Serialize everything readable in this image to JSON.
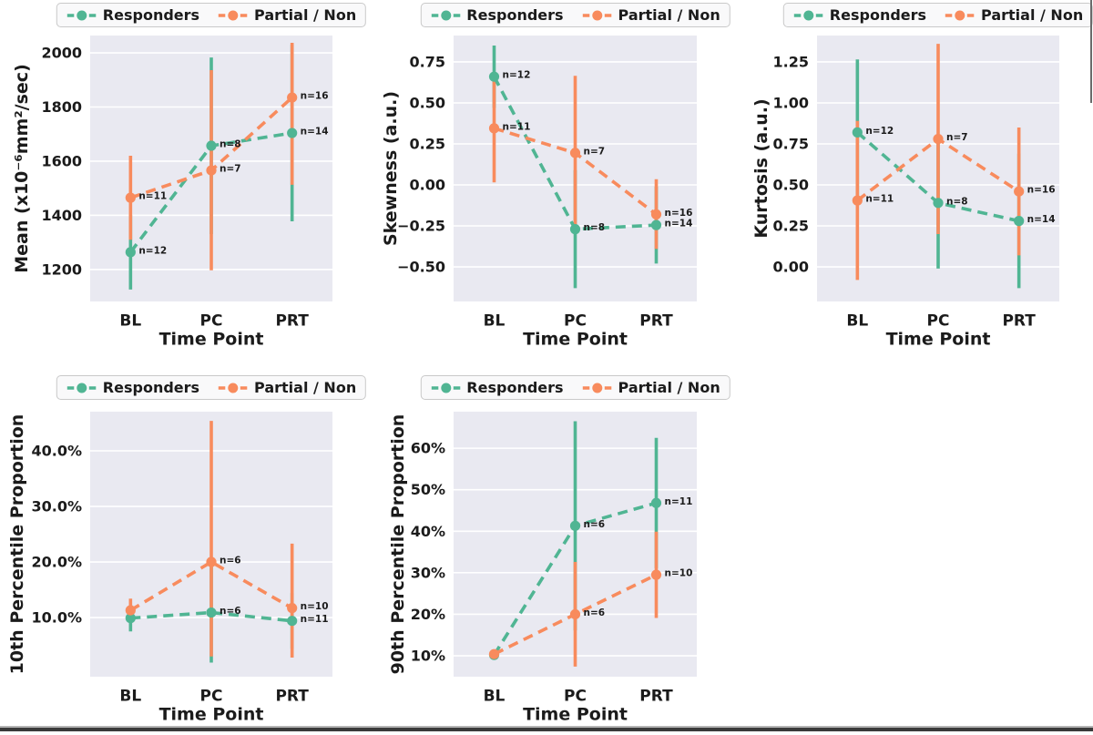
{
  "figure": {
    "bg": "#ffffff",
    "plot_bg": "#e9e9f1",
    "grid_color": "#ffffff",
    "text_color": "#1b1b1b",
    "series_colors": {
      "responders": "#50b593",
      "partial_non": "#f88b5d"
    },
    "legend": {
      "labels": [
        "Responders",
        "Partial / Non"
      ],
      "bg": "#f9f9fa",
      "border": "#c9c9c9"
    }
  },
  "chart_data": [
    {
      "id": "mean",
      "type": "line",
      "xlabel": "Time Point",
      "ylabel": "Mean (x10⁻⁶mm²/sec)",
      "categories": [
        "BL",
        "PC",
        "PRT"
      ],
      "ylim": [
        1082,
        2064
      ],
      "yticks": [
        1200,
        1400,
        1600,
        1800,
        2000
      ],
      "ytick_labels": [
        "1200",
        "1400",
        "1600",
        "1800",
        "2000"
      ],
      "grid": "horizontal-white",
      "legend_position": "top-center",
      "series": [
        {
          "name": "Responders",
          "values": [
            1264,
            1657,
            1704
          ],
          "err_lo": [
            1126,
            1331,
            1378
          ],
          "err_hi": [
            1402,
            1983,
            2030
          ],
          "point_labels": [
            "n=12",
            "n=8",
            "n=14"
          ]
        },
        {
          "name": "Partial / Non",
          "values": [
            1465,
            1566,
            1835
          ],
          "err_lo": [
            1310,
            1197,
            1513
          ],
          "err_hi": [
            1620,
            1936,
            2037
          ],
          "point_labels": [
            "n=11",
            "n=7",
            "n=16"
          ]
        }
      ]
    },
    {
      "id": "skewness",
      "type": "line",
      "xlabel": "Time Point",
      "ylabel": "Skewness (a.u.)",
      "categories": [
        "BL",
        "PC",
        "PRT"
      ],
      "ylim": [
        -0.711,
        0.911
      ],
      "yticks": [
        -0.5,
        -0.25,
        0.0,
        0.25,
        0.5,
        0.75
      ],
      "ytick_labels": [
        "−0.50",
        "−0.25",
        "0.00",
        "0.25",
        "0.50",
        "0.75"
      ],
      "grid": "horizontal-white",
      "legend_position": "top-center",
      "series": [
        {
          "name": "Responders",
          "values": [
            0.66,
            -0.27,
            -0.245
          ],
          "err_lo": [
            0.47,
            -0.63,
            -0.48
          ],
          "err_hi": [
            0.85,
            0.09,
            -0.01
          ],
          "point_labels": [
            "n=12",
            "n=8",
            "n=14"
          ]
        },
        {
          "name": "Partial / Non",
          "values": [
            0.345,
            0.195,
            -0.18
          ],
          "err_lo": [
            0.015,
            -0.275,
            -0.39
          ],
          "err_hi": [
            0.67,
            0.665,
            0.035
          ],
          "point_labels": [
            "n=11",
            "n=7",
            "n=16"
          ]
        }
      ]
    },
    {
      "id": "kurtosis",
      "type": "line",
      "xlabel": "Time Point",
      "ylabel": "Kurtosis (a.u.)",
      "categories": [
        "BL",
        "PC",
        "PRT"
      ],
      "ylim": [
        -0.211,
        1.411
      ],
      "yticks": [
        0.0,
        0.25,
        0.5,
        0.75,
        1.0,
        1.25
      ],
      "ytick_labels": [
        "0.00",
        "0.25",
        "0.50",
        "0.75",
        "1.00",
        "1.25"
      ],
      "grid": "horizontal-white",
      "legend_position": "top-center",
      "series": [
        {
          "name": "Responders",
          "values": [
            0.82,
            0.39,
            0.28
          ],
          "err_lo": [
            0.375,
            -0.01,
            -0.13
          ],
          "err_hi": [
            1.265,
            0.79,
            0.69
          ],
          "point_labels": [
            "n=12",
            "n=8",
            "n=14"
          ]
        },
        {
          "name": "Partial / Non",
          "values": [
            0.405,
            0.78,
            0.46
          ],
          "err_lo": [
            -0.08,
            0.2,
            0.07
          ],
          "err_hi": [
            0.89,
            1.36,
            0.85
          ],
          "point_labels": [
            "n=11",
            "n=7",
            "n=16"
          ]
        }
      ]
    },
    {
      "id": "p10",
      "type": "line",
      "xlabel": "Time Point",
      "ylabel": "10th Percentile Proportion",
      "categories": [
        "BL",
        "PC",
        "PRT"
      ],
      "ylim": [
        -0.65,
        47.05
      ],
      "yticks": [
        10,
        20,
        30,
        40
      ],
      "ytick_labels": [
        "10.0%",
        "20.0%",
        "30.0%",
        "40.0%"
      ],
      "grid": "horizontal-white",
      "legend_position": "top-center",
      "series": [
        {
          "name": "Responders",
          "values": [
            9.9,
            10.9,
            9.4
          ],
          "err_lo": [
            7.5,
            1.9,
            4.4
          ],
          "err_hi": [
            12.3,
            19.9,
            14.4
          ],
          "point_labels": [
            null,
            "n=6",
            "n=11"
          ]
        },
        {
          "name": "Partial / Non",
          "values": [
            11.3,
            20.0,
            11.7
          ],
          "err_lo": [
            9.2,
            3.0,
            2.8
          ],
          "err_hi": [
            13.4,
            45.4,
            23.3
          ],
          "point_labels": [
            null,
            "n=6",
            "n=10"
          ]
        }
      ]
    },
    {
      "id": "p90",
      "type": "line",
      "xlabel": "Time Point",
      "ylabel": "90th Percentile Proportion",
      "categories": [
        "BL",
        "PC",
        "PRT"
      ],
      "ylim": [
        4.96,
        68.8
      ],
      "yticks": [
        10,
        20,
        30,
        40,
        50,
        60
      ],
      "ytick_labels": [
        "10%",
        "20%",
        "30%",
        "40%",
        "50%",
        "60%"
      ],
      "grid": "horizontal-white",
      "legend_position": "top-center",
      "series": [
        {
          "name": "Responders",
          "values": [
            10.2,
            41.3,
            46.8
          ],
          "err_lo": [
            9.6,
            16.1,
            31.1
          ],
          "err_hi": [
            10.8,
            66.5,
            62.5
          ],
          "point_labels": [
            null,
            "n=6",
            "n=11"
          ]
        },
        {
          "name": "Partial / Non",
          "values": [
            10.4,
            20.0,
            29.5
          ],
          "err_lo": [
            9.8,
            7.4,
            19.1
          ],
          "err_hi": [
            11.0,
            32.6,
            39.9
          ],
          "point_labels": [
            null,
            "n=6",
            "n=10"
          ]
        }
      ]
    }
  ]
}
